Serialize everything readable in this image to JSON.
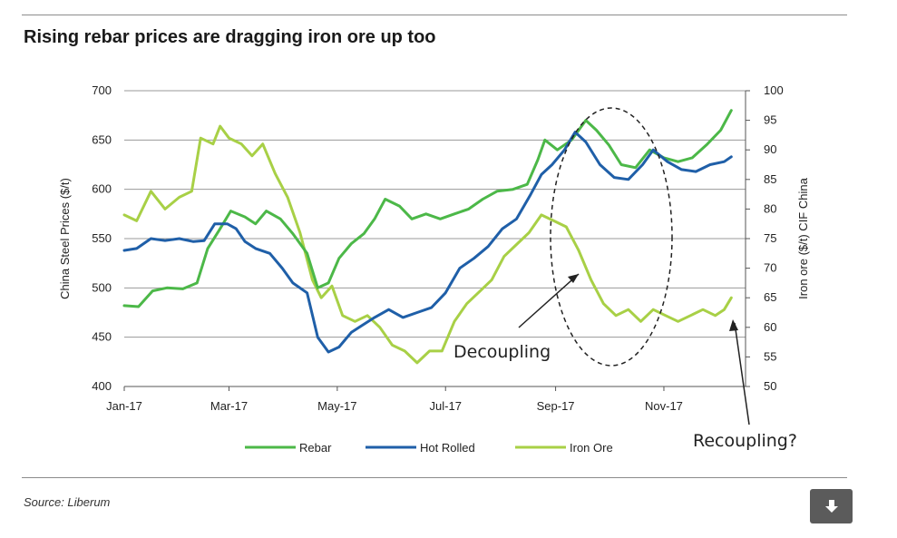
{
  "title": "Rising rebar prices are dragging iron ore up too",
  "source": "Source: Liberum",
  "download_icon": "download-arrow-icon",
  "chart_data": {
    "type": "line",
    "title": "Rising rebar prices are dragging iron ore up too",
    "x_tick_labels": [
      "Jan-17",
      "Mar-17",
      "May-17",
      "Jul-17",
      "Sep-17",
      "Nov-17"
    ],
    "x_range": [
      "2017-01-01",
      "2017-12-17"
    ],
    "ylabel_left": "China Steel Prices ($/t)",
    "ylabel_right": "Iron ore ($/t) CIF China",
    "ylim_left": [
      400,
      700
    ],
    "ylim_right": [
      50,
      100
    ],
    "yticks_left": [
      400,
      450,
      500,
      550,
      600,
      650,
      700
    ],
    "yticks_right": [
      50,
      55,
      60,
      65,
      70,
      75,
      80,
      85,
      90,
      95,
      100
    ],
    "grid": true,
    "legend_position": "bottom-center",
    "series": [
      {
        "name": "Rebar",
        "axis": "left",
        "color": "#4cb848",
        "points": [
          [
            "2017-01-01",
            482
          ],
          [
            "2017-01-09",
            481
          ],
          [
            "2017-01-17",
            497
          ],
          [
            "2017-01-25",
            500
          ],
          [
            "2017-02-03",
            499
          ],
          [
            "2017-02-11",
            505
          ],
          [
            "2017-02-17",
            540
          ],
          [
            "2017-02-24",
            560
          ],
          [
            "2017-03-02",
            578
          ],
          [
            "2017-03-10",
            572
          ],
          [
            "2017-03-16",
            565
          ],
          [
            "2017-03-22",
            578
          ],
          [
            "2017-03-30",
            570
          ],
          [
            "2017-04-06",
            555
          ],
          [
            "2017-04-14",
            535
          ],
          [
            "2017-04-20",
            500
          ],
          [
            "2017-04-26",
            505
          ],
          [
            "2017-05-02",
            530
          ],
          [
            "2017-05-09",
            545
          ],
          [
            "2017-05-16",
            555
          ],
          [
            "2017-05-22",
            570
          ],
          [
            "2017-05-28",
            590
          ],
          [
            "2017-06-05",
            583
          ],
          [
            "2017-06-12",
            570
          ],
          [
            "2017-06-20",
            575
          ],
          [
            "2017-06-28",
            570
          ],
          [
            "2017-07-06",
            575
          ],
          [
            "2017-07-14",
            580
          ],
          [
            "2017-07-22",
            590
          ],
          [
            "2017-07-30",
            598
          ],
          [
            "2017-08-08",
            600
          ],
          [
            "2017-08-16",
            605
          ],
          [
            "2017-08-22",
            630
          ],
          [
            "2017-08-26",
            650
          ],
          [
            "2017-09-02",
            640
          ],
          [
            "2017-09-10",
            650
          ],
          [
            "2017-09-18",
            670
          ],
          [
            "2017-09-24",
            660
          ],
          [
            "2017-10-01",
            645
          ],
          [
            "2017-10-08",
            625
          ],
          [
            "2017-10-16",
            622
          ],
          [
            "2017-10-24",
            640
          ],
          [
            "2017-11-01",
            632
          ],
          [
            "2017-11-09",
            628
          ],
          [
            "2017-11-17",
            632
          ],
          [
            "2017-11-25",
            645
          ],
          [
            "2017-12-03",
            660
          ],
          [
            "2017-12-09",
            680
          ]
        ]
      },
      {
        "name": "Hot Rolled",
        "axis": "left",
        "color": "#1f5fa8",
        "points": [
          [
            "2017-01-01",
            538
          ],
          [
            "2017-01-08",
            540
          ],
          [
            "2017-01-16",
            550
          ],
          [
            "2017-01-24",
            548
          ],
          [
            "2017-02-01",
            550
          ],
          [
            "2017-02-09",
            547
          ],
          [
            "2017-02-15",
            548
          ],
          [
            "2017-02-21",
            565
          ],
          [
            "2017-02-28",
            565
          ],
          [
            "2017-03-05",
            560
          ],
          [
            "2017-03-10",
            547
          ],
          [
            "2017-03-16",
            540
          ],
          [
            "2017-03-24",
            535
          ],
          [
            "2017-03-31",
            520
          ],
          [
            "2017-04-06",
            505
          ],
          [
            "2017-04-14",
            495
          ],
          [
            "2017-04-20",
            450
          ],
          [
            "2017-04-26",
            435
          ],
          [
            "2017-05-02",
            440
          ],
          [
            "2017-05-09",
            455
          ],
          [
            "2017-05-15",
            462
          ],
          [
            "2017-05-22",
            470
          ],
          [
            "2017-05-30",
            478
          ],
          [
            "2017-06-07",
            470
          ],
          [
            "2017-06-15",
            475
          ],
          [
            "2017-06-23",
            480
          ],
          [
            "2017-07-01",
            495
          ],
          [
            "2017-07-09",
            520
          ],
          [
            "2017-07-17",
            530
          ],
          [
            "2017-07-25",
            542
          ],
          [
            "2017-08-02",
            560
          ],
          [
            "2017-08-10",
            570
          ],
          [
            "2017-08-18",
            595
          ],
          [
            "2017-08-24",
            615
          ],
          [
            "2017-08-30",
            625
          ],
          [
            "2017-09-06",
            640
          ],
          [
            "2017-09-12",
            658
          ],
          [
            "2017-09-18",
            648
          ],
          [
            "2017-09-26",
            625
          ],
          [
            "2017-10-04",
            612
          ],
          [
            "2017-10-12",
            610
          ],
          [
            "2017-10-20",
            625
          ],
          [
            "2017-10-26",
            640
          ],
          [
            "2017-11-03",
            628
          ],
          [
            "2017-11-11",
            620
          ],
          [
            "2017-11-19",
            618
          ],
          [
            "2017-11-27",
            625
          ],
          [
            "2017-12-05",
            628
          ],
          [
            "2017-12-09",
            633
          ]
        ]
      },
      {
        "name": "Iron Ore",
        "axis": "right",
        "color": "#a8d046",
        "points": [
          [
            "2017-01-01",
            79
          ],
          [
            "2017-01-08",
            78
          ],
          [
            "2017-01-16",
            83
          ],
          [
            "2017-01-24",
            80
          ],
          [
            "2017-02-01",
            82
          ],
          [
            "2017-02-08",
            83
          ],
          [
            "2017-02-13",
            92
          ],
          [
            "2017-02-20",
            91
          ],
          [
            "2017-02-24",
            94
          ],
          [
            "2017-03-01",
            92
          ],
          [
            "2017-03-08",
            91
          ],
          [
            "2017-03-14",
            89
          ],
          [
            "2017-03-20",
            91
          ],
          [
            "2017-03-27",
            86
          ],
          [
            "2017-04-03",
            82
          ],
          [
            "2017-04-10",
            76
          ],
          [
            "2017-04-17",
            68
          ],
          [
            "2017-04-22",
            65
          ],
          [
            "2017-04-28",
            67
          ],
          [
            "2017-05-04",
            62
          ],
          [
            "2017-05-11",
            61
          ],
          [
            "2017-05-18",
            62
          ],
          [
            "2017-05-25",
            60
          ],
          [
            "2017-06-01",
            57
          ],
          [
            "2017-06-08",
            56
          ],
          [
            "2017-06-15",
            54
          ],
          [
            "2017-06-22",
            56
          ],
          [
            "2017-06-29",
            56
          ],
          [
            "2017-07-06",
            61
          ],
          [
            "2017-07-13",
            64
          ],
          [
            "2017-07-20",
            66
          ],
          [
            "2017-07-27",
            68
          ],
          [
            "2017-08-03",
            72
          ],
          [
            "2017-08-10",
            74
          ],
          [
            "2017-08-17",
            76
          ],
          [
            "2017-08-24",
            79
          ],
          [
            "2017-08-31",
            78
          ],
          [
            "2017-09-07",
            77
          ],
          [
            "2017-09-14",
            73
          ],
          [
            "2017-09-21",
            68
          ],
          [
            "2017-09-28",
            64
          ],
          [
            "2017-10-05",
            62
          ],
          [
            "2017-10-12",
            63
          ],
          [
            "2017-10-19",
            61
          ],
          [
            "2017-10-26",
            63
          ],
          [
            "2017-11-02",
            62
          ],
          [
            "2017-11-09",
            61
          ],
          [
            "2017-11-16",
            62
          ],
          [
            "2017-11-23",
            63
          ],
          [
            "2017-11-30",
            62
          ],
          [
            "2017-12-05",
            63
          ],
          [
            "2017-12-09",
            65
          ]
        ]
      }
    ],
    "annotations": [
      {
        "text": "Decoupling"
      },
      {
        "text": "Recoupling?"
      }
    ]
  }
}
